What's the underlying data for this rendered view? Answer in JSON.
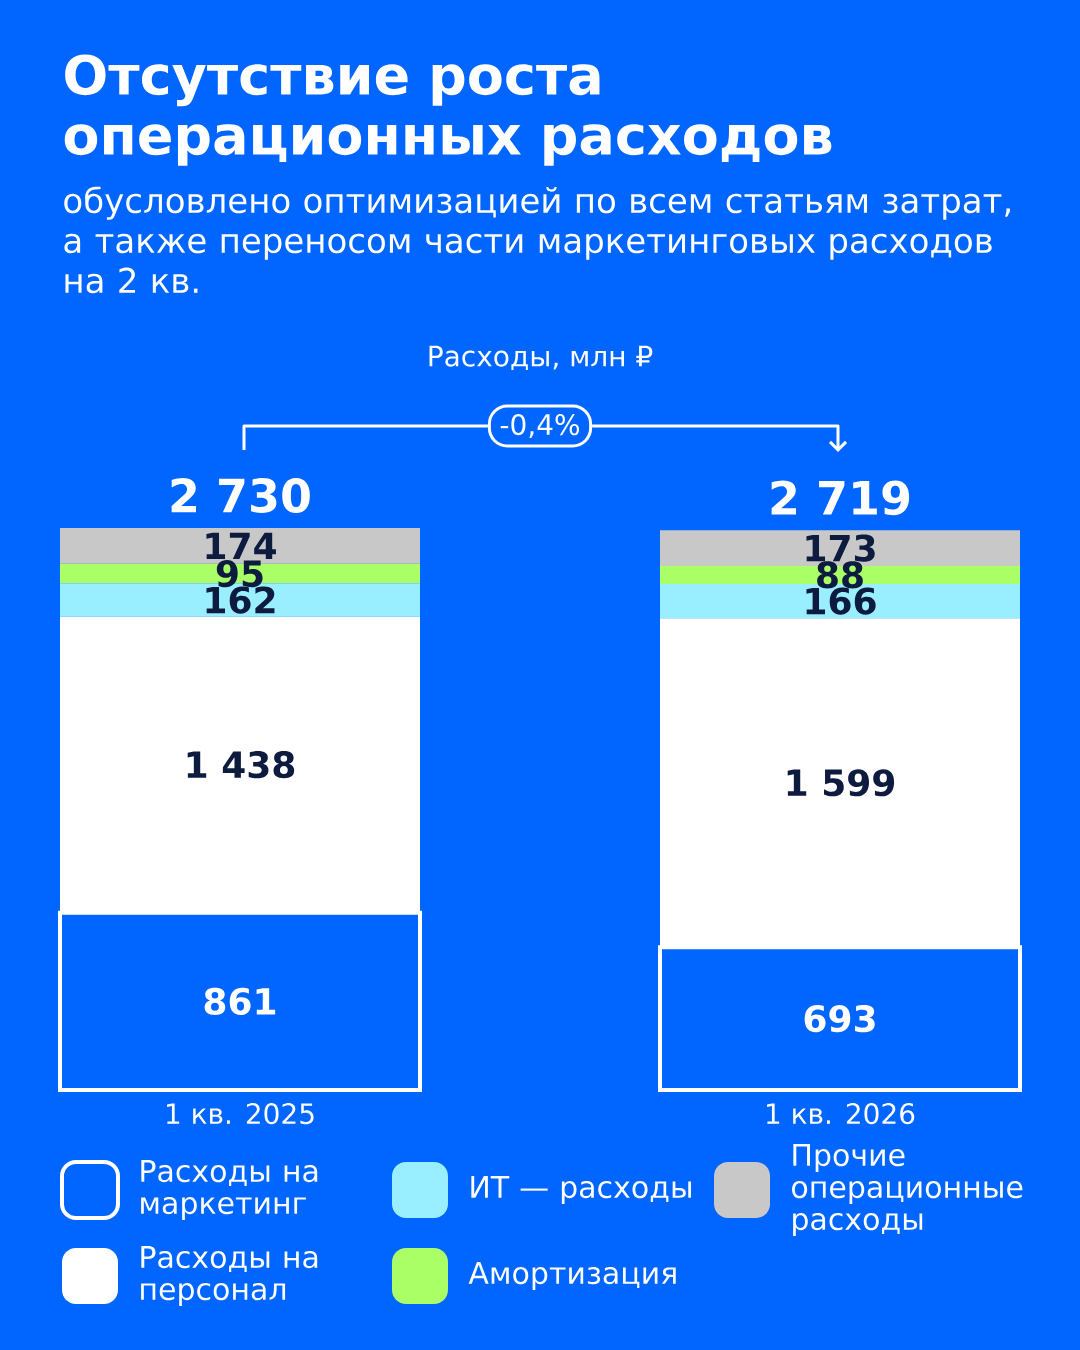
{
  "chart_data": {
    "type": "bar",
    "title": "Отсутствие роста операционных расходов",
    "subtitle": "обусловлено оптимизацией по всем статьям затрат, а также переносом части маркетинговых расходов на 2 кв.",
    "categories": [
      "1 кв. 2025",
      "1 кв. 2026"
    ],
    "stacked": true,
    "legend": "bottom",
    "series": [
      {
        "name": "Расходы на маркетинг",
        "color": "#0066ff",
        "values": [
          861,
          693
        ],
        "value_labels": [
          "861",
          "693"
        ]
      },
      {
        "name": "Расходы на персонал",
        "color": "#ffffff",
        "values": [
          1438,
          1599
        ],
        "value_labels": [
          "1 438",
          "1 599"
        ]
      },
      {
        "name": "ИТ — расходы",
        "color": "#99eeff",
        "values": [
          162,
          166
        ],
        "value_labels": [
          "162",
          "166"
        ]
      },
      {
        "name": "Амортизация",
        "color": "#aaff66",
        "values": [
          95,
          88
        ],
        "value_labels": [
          "95",
          "88"
        ]
      },
      {
        "name": "Прочие операционные расходы",
        "color": "#c8c8c8",
        "values": [
          174,
          173
        ],
        "value_labels": [
          "174",
          "173"
        ]
      }
    ],
    "totals": [
      "2 730",
      "2 719"
    ],
    "annotations": [
      "Расходы, млн ₽",
      "-0,4%"
    ]
  }
}
